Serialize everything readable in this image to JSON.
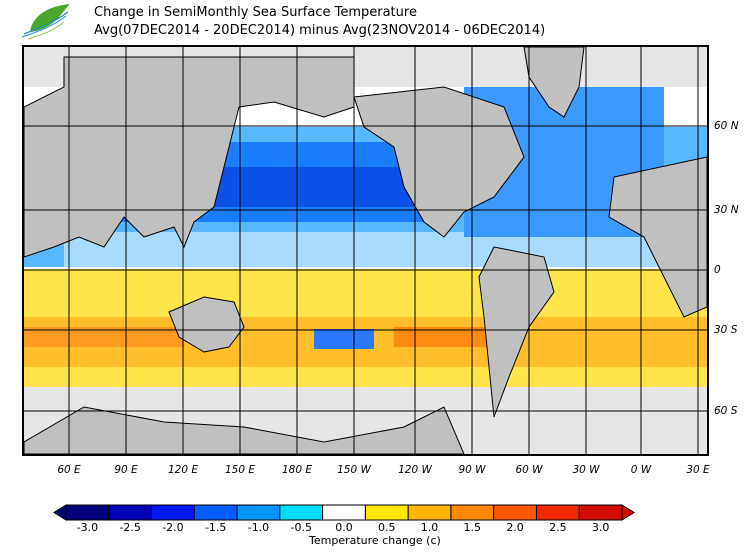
{
  "title": {
    "line1": "Change in SemiMonthly Sea Surface Temperature",
    "line2": "Avg(07DEC2014 - 20DEC2014) minus Avg(23NOV2014 - 06DEC2014)"
  },
  "logo": {
    "icon": "leaf-logo-icon",
    "color": "#3a9a3a"
  },
  "map": {
    "projection": "equirectangular, Pacific-centered",
    "land_color": "#c0c0c0",
    "ice_color": "#e0e0e0",
    "longitude_labels": [
      "60 E",
      "90 E",
      "120 E",
      "150 E",
      "180 E",
      "150 W",
      "120 W",
      "90 W",
      "60 W",
      "30 W",
      "0 W",
      "30 E"
    ],
    "latitude_labels": [
      "60 N",
      "30 N",
      "0",
      "30 S",
      "60 S"
    ]
  },
  "colorbar": {
    "title": "Temperature change  (c)",
    "labels": [
      "-3.0",
      "-2.5",
      "-2.0",
      "-1.5",
      "-1.0",
      "-0.5",
      "0.0",
      "0.5",
      "1.0",
      "1.5",
      "2.0",
      "2.5",
      "3.0"
    ],
    "colors": [
      "#00007a",
      "#0000b8",
      "#0018f0",
      "#0060ff",
      "#0098ff",
      "#00ddf8",
      "#ffffff",
      "#ffe800",
      "#ffb400",
      "#ff8800",
      "#ff5800",
      "#f02800",
      "#d20e00"
    ]
  }
}
